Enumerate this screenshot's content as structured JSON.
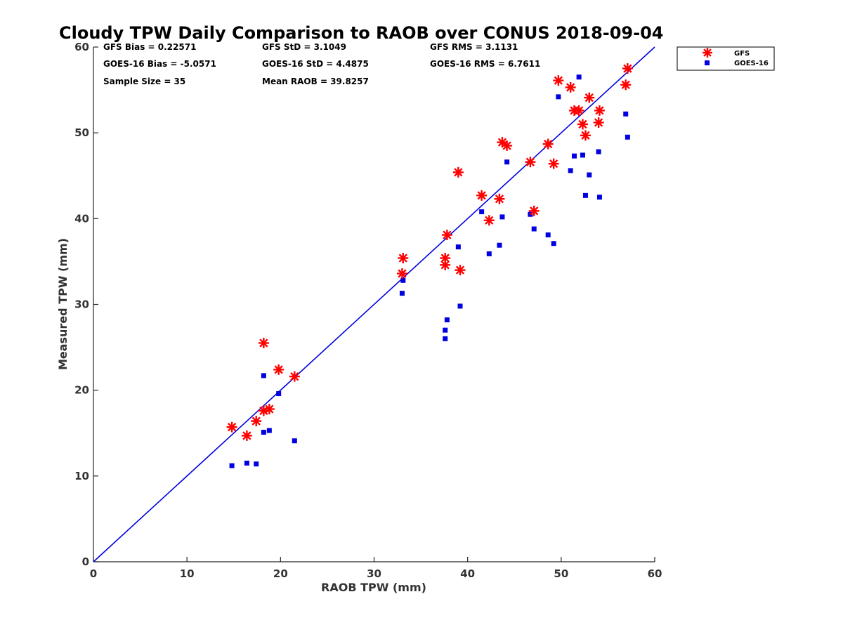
{
  "chart_data": {
    "type": "scatter",
    "title": "Cloudy TPW Daily Comparison to RAOB over CONUS 2018-09-04",
    "xlabel": "RAOB TPW (mm)",
    "ylabel": "Measured TPW (mm)",
    "xlim": [
      0,
      60
    ],
    "ylim": [
      0,
      60
    ],
    "xticks": [
      0,
      10,
      20,
      30,
      40,
      50,
      60
    ],
    "yticks": [
      0,
      10,
      20,
      30,
      40,
      50,
      60
    ],
    "grid": false,
    "legend_position": "outside-top-right",
    "reference_line": {
      "x": [
        0,
        60
      ],
      "y": [
        0,
        60
      ],
      "color": "#0000e0"
    },
    "stats": {
      "gfs_bias": "GFS Bias = 0.22571",
      "goes_bias": "GOES-16 Bias = -5.0571",
      "sample_size": "Sample Size = 35",
      "gfs_std": "GFS StD = 3.1049",
      "goes_std": "GOES-16 StD = 4.4875",
      "mean_raob": "Mean RAOB = 39.8257",
      "gfs_rms": "GFS RMS = 3.1131",
      "goes_rms": "GOES-16 RMS = 6.7611"
    },
    "series": [
      {
        "name": "GFS",
        "marker": "asterisk",
        "color": "#ff0000",
        "points": [
          [
            14.8,
            15.7
          ],
          [
            16.4,
            14.7
          ],
          [
            17.4,
            16.4
          ],
          [
            18.2,
            25.5
          ],
          [
            18.2,
            17.6
          ],
          [
            18.8,
            17.8
          ],
          [
            19.8,
            22.4
          ],
          [
            21.5,
            21.6
          ],
          [
            33.0,
            33.6
          ],
          [
            33.1,
            35.4
          ],
          [
            37.6,
            35.4
          ],
          [
            37.6,
            34.6
          ],
          [
            37.8,
            38.1
          ],
          [
            39.0,
            45.4
          ],
          [
            39.2,
            34.0
          ],
          [
            41.5,
            42.7
          ],
          [
            42.3,
            39.8
          ],
          [
            43.4,
            42.3
          ],
          [
            43.7,
            48.9
          ],
          [
            44.2,
            48.5
          ],
          [
            46.7,
            46.6
          ],
          [
            47.1,
            40.9
          ],
          [
            48.6,
            48.7
          ],
          [
            49.2,
            46.4
          ],
          [
            49.7,
            56.1
          ],
          [
            51.0,
            55.3
          ],
          [
            51.4,
            52.6
          ],
          [
            51.9,
            52.6
          ],
          [
            52.3,
            51.0
          ],
          [
            52.6,
            49.7
          ],
          [
            53.0,
            54.1
          ],
          [
            54.0,
            51.2
          ],
          [
            54.1,
            52.6
          ],
          [
            56.9,
            55.6
          ],
          [
            57.1,
            57.5
          ]
        ]
      },
      {
        "name": "GOES-16",
        "marker": "square",
        "color": "#0000e0",
        "points": [
          [
            14.8,
            11.2
          ],
          [
            16.4,
            11.5
          ],
          [
            17.4,
            11.4
          ],
          [
            18.2,
            21.7
          ],
          [
            18.2,
            15.1
          ],
          [
            18.8,
            15.3
          ],
          [
            19.8,
            19.6
          ],
          [
            21.5,
            14.1
          ],
          [
            33.0,
            31.3
          ],
          [
            33.1,
            32.8
          ],
          [
            37.6,
            27.0
          ],
          [
            37.6,
            26.0
          ],
          [
            37.8,
            28.2
          ],
          [
            39.0,
            36.7
          ],
          [
            39.2,
            29.8
          ],
          [
            41.5,
            40.8
          ],
          [
            42.3,
            35.9
          ],
          [
            43.4,
            36.9
          ],
          [
            43.7,
            40.2
          ],
          [
            44.2,
            46.6
          ],
          [
            46.7,
            40.5
          ],
          [
            47.1,
            38.8
          ],
          [
            48.6,
            38.1
          ],
          [
            49.2,
            37.1
          ],
          [
            49.7,
            54.2
          ],
          [
            51.0,
            45.6
          ],
          [
            51.4,
            47.3
          ],
          [
            51.9,
            56.5
          ],
          [
            52.3,
            47.4
          ],
          [
            52.6,
            42.7
          ],
          [
            53.0,
            45.1
          ],
          [
            54.0,
            47.8
          ],
          [
            54.1,
            42.5
          ],
          [
            56.9,
            52.2
          ],
          [
            57.1,
            49.5
          ]
        ]
      }
    ]
  }
}
